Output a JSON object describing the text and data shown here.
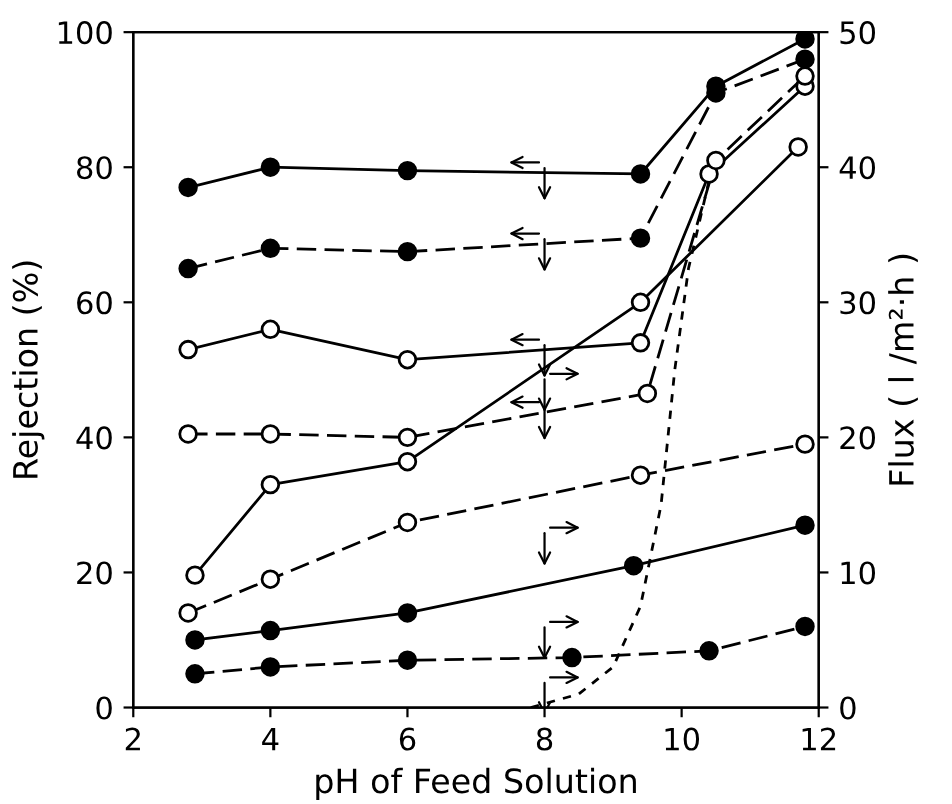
{
  "chart_data": {
    "type": "line",
    "xlabel": "pH of Feed Solution",
    "ylabel": "Rejection (%)",
    "y2label": "Flux ( l /m²·h )",
    "xlim": [
      2,
      12
    ],
    "xticks": [
      2,
      4,
      6,
      8,
      10,
      12
    ],
    "ylim": [
      0,
      100
    ],
    "yticks": [
      0,
      20,
      40,
      60,
      80,
      100
    ],
    "y2lim": [
      0,
      50
    ],
    "y2ticks": [
      0,
      10,
      20,
      30,
      40,
      50
    ],
    "grid": false,
    "legend": false,
    "marker": "circle",
    "series": [
      {
        "color": "#000000",
        "colors": [
          "#000000",
          "#000000",
          "#000000",
          "#000000",
          "#000000",
          "#000000"
        ],
        "line_style": "solid",
        "x": [
          2.8,
          4,
          6,
          9.4,
          10.5,
          11.8
        ],
        "values": [
          77,
          80,
          79.5,
          79,
          92,
          99
        ]
      },
      {
        "color": "#000000",
        "colors": [
          "#000000",
          "#000000",
          "#000000",
          "#000000",
          "#000000",
          "#000000"
        ],
        "line_style": "dashed",
        "x": [
          2.8,
          4,
          6,
          9.4,
          10.5,
          11.8
        ],
        "values": [
          65,
          68,
          67.5,
          69.5,
          91,
          96
        ]
      },
      {
        "color": "#000000",
        "colors": [
          "#ffffff",
          "#ffffff",
          "#ffffff",
          "#ffffff",
          "#ffffff",
          "#ffffff"
        ],
        "line_style": "solid",
        "x": [
          2.8,
          4,
          6,
          9.4,
          10.4,
          11.8
        ],
        "values": [
          53,
          56,
          51.5,
          54,
          79,
          92
        ]
      },
      {
        "color": "#000000",
        "colors": [
          "#ffffff",
          "#ffffff",
          "#ffffff",
          "#ffffff",
          "#ffffff",
          "#ffffff"
        ],
        "line_style": "dashed",
        "x": [
          2.8,
          4,
          6,
          9.5,
          10.5,
          11.8
        ],
        "values": [
          40.5,
          40.5,
          40,
          46.5,
          81,
          93.5
        ]
      },
      {
        "color": "#000000",
        "marker": "none",
        "line_style": "dotted",
        "x": [
          7.8,
          8.5,
          9.0,
          9.4,
          9.7,
          9.9,
          10.1,
          10.4
        ],
        "values": [
          0,
          2,
          6,
          15,
          30,
          50,
          65,
          78
        ]
      },
      {
        "color": "#000000",
        "colors": [
          "#ffffff",
          "#ffffff",
          "#ffffff",
          "#ffffff",
          "#ffffff"
        ],
        "line_style": "solid",
        "axis": "y2",
        "x": [
          2.9,
          4,
          6,
          9.4,
          11.7
        ],
        "values": [
          9.8,
          16.5,
          18.2,
          30,
          41.5
        ]
      },
      {
        "color": "#000000",
        "colors": [
          "#ffffff",
          "#ffffff",
          "#ffffff",
          "#ffffff",
          "#ffffff"
        ],
        "line_style": "dashed",
        "axis": "y2",
        "x": [
          2.8,
          4,
          6,
          9.4,
          11.8
        ],
        "values": [
          7,
          9.5,
          13.7,
          17.2,
          19.5
        ]
      },
      {
        "color": "#000000",
        "colors": [
          "#000000",
          "#000000",
          "#000000",
          "#000000",
          "#000000"
        ],
        "line_style": "solid",
        "axis": "y2",
        "x": [
          2.9,
          4,
          6,
          9.3,
          11.8
        ],
        "values": [
          5,
          5.7,
          7,
          10.5,
          13.5
        ]
      },
      {
        "color": "#000000",
        "colors": [
          "#000000",
          "#000000",
          "#000000",
          "#000000",
          "#000000",
          "#000000"
        ],
        "line_style": "dashed",
        "axis": "y2",
        "x": [
          2.9,
          4,
          6,
          8.4,
          10.4,
          11.8
        ],
        "values": [
          2.5,
          3,
          3.5,
          3.7,
          4.2,
          6
        ]
      }
    ]
  }
}
